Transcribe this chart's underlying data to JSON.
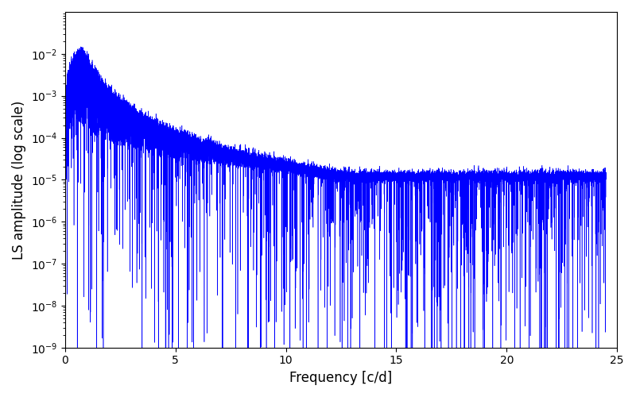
{
  "title": "",
  "xlabel": "Frequency [c/d]",
  "ylabel": "LS amplitude (log scale)",
  "xlim": [
    0,
    25
  ],
  "ylim": [
    1e-09,
    0.1
  ],
  "line_color": "#0000ff",
  "background_color": "#ffffff",
  "xmin": 0.001,
  "xmax": 24.5,
  "n_points": 15000,
  "seed": 42,
  "yticks": [
    1e-09,
    1e-08,
    1e-07,
    1e-06,
    1e-05,
    0.0001,
    0.001,
    0.01
  ],
  "xticks": [
    0,
    5,
    10,
    15,
    20,
    25
  ]
}
